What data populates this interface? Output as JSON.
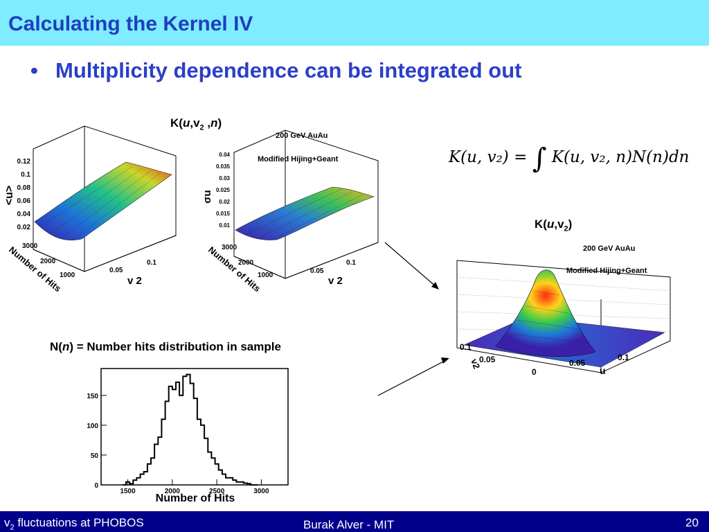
{
  "slide": {
    "title": "Calculating the Kernel IV",
    "bullet": "Multiplicity dependence can be integrated out"
  },
  "labels": {
    "kernel_3d": "K(u,v2 ,n)",
    "kernel_2d": "K(u,v2)",
    "nhits": "N(n) = Number hits distribution in sample",
    "auau": "200 GeV AuAu",
    "hijing": "Modified Hijing+Geant",
    "auau_2": "200 GeV AuAu",
    "hijing_2": "Modified Hijing+Geant"
  },
  "formula": {
    "lhs": "K(u, v₂) =",
    "rhs": "K(u, v₂, n)N(n)dn"
  },
  "plot_mean": {
    "zlabel": "<u>",
    "zticks": [
      "0.12",
      "0.1",
      "0.08",
      "0.06",
      "0.04",
      "0.02"
    ],
    "nticks": [
      "3000",
      "2000",
      "1000"
    ],
    "vticks": [
      "0.05",
      "0.1"
    ],
    "nlabel": "Number of Hits",
    "vlabel": "v 2"
  },
  "plot_sigma": {
    "zlabel": "σu",
    "zticks": [
      "0.04",
      "0.035",
      "0.03",
      "0.025",
      "0.02",
      "0.015",
      "0.01"
    ],
    "nticks": [
      "3000",
      "2000",
      "1000"
    ],
    "vticks": [
      "0.05",
      "0.1"
    ],
    "nlabel": "Number of Hits",
    "vlabel": "v 2"
  },
  "plot_kernel": {
    "v2ticks": [
      "0.1",
      "0.05",
      "0"
    ],
    "uticks": [
      "0.05",
      "0.1"
    ],
    "v2label": "v2",
    "ulabel": "u"
  },
  "chart_data": {
    "type": "bar",
    "title": "",
    "xlabel": "Number of Hits",
    "ylabel": "",
    "xlim": [
      1200,
      3300
    ],
    "ylim": [
      0,
      195
    ],
    "xticks": [
      1500,
      2000,
      2500,
      3000
    ],
    "yticks": [
      0,
      50,
      100,
      150
    ],
    "bin_width": 40,
    "x": [
      1440,
      1480,
      1520,
      1560,
      1600,
      1640,
      1680,
      1720,
      1760,
      1800,
      1840,
      1880,
      1920,
      1960,
      2000,
      2040,
      2080,
      2120,
      2160,
      2200,
      2240,
      2280,
      2320,
      2360,
      2400,
      2440,
      2480,
      2520,
      2560,
      2600,
      2640,
      2680,
      2720,
      2760,
      2800,
      2840,
      2880,
      2920
    ],
    "values": [
      0,
      5,
      2,
      8,
      12,
      18,
      22,
      35,
      45,
      68,
      80,
      110,
      140,
      165,
      160,
      172,
      150,
      182,
      185,
      170,
      145,
      110,
      100,
      78,
      55,
      45,
      35,
      25,
      18,
      12,
      12,
      8,
      5,
      5,
      3,
      2,
      0,
      0
    ]
  },
  "footer": {
    "left": "v2 fluctuations at PHOBOS",
    "center": "Burak Alver - MIT",
    "page": "20"
  },
  "colors": {
    "title_bar": "#7fecff",
    "title_text": "#1f3fbf",
    "footer_bg": "#00008b"
  }
}
